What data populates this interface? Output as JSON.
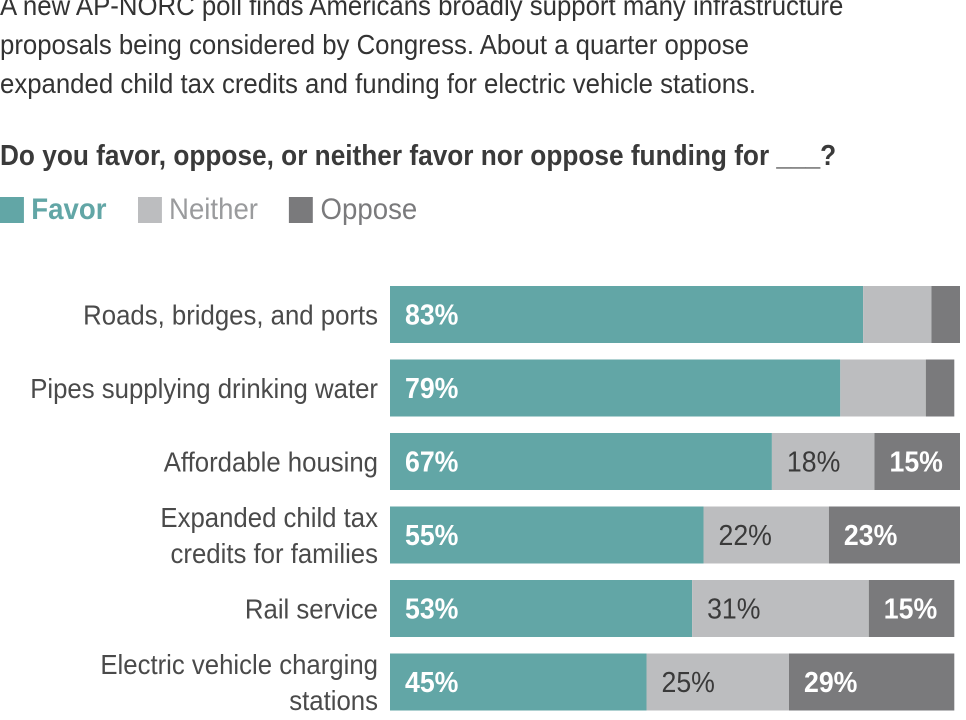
{
  "intro_lines": [
    "A new AP-NORC poll finds Americans broadly support many infrastructure",
    "proposals being considered by Congress. About a quarter oppose",
    "expanded child tax credits and funding for electric vehicle stations."
  ],
  "question": "Do you favor, oppose, or neither favor nor oppose funding for ___?",
  "legend": [
    {
      "label": "Favor",
      "color": "#62a6a6",
      "text_color": "#62a6a6",
      "bold": true
    },
    {
      "label": "Neither",
      "color": "#bcbdbf",
      "text_color": "#9a9b9d",
      "bold": false
    },
    {
      "label": "Oppose",
      "color": "#7a7a7c",
      "text_color": "#7a7a7c",
      "bold": false
    }
  ],
  "chart_data": {
    "type": "bar",
    "orientation": "horizontal",
    "stacked": true,
    "categories": [
      [
        "Roads, bridges, and ports"
      ],
      [
        "Pipes supplying drinking water"
      ],
      [
        "Affordable housing"
      ],
      [
        "Expanded child tax",
        "credits for families"
      ],
      [
        "Rail service"
      ],
      [
        "Electric vehicle charging",
        "stations"
      ]
    ],
    "series": [
      {
        "name": "Favor",
        "color": "#62a6a6",
        "values": [
          83,
          79,
          67,
          55,
          53,
          45
        ],
        "labels": [
          "83%",
          "79%",
          "67%",
          "55%",
          "53%",
          "45%"
        ]
      },
      {
        "name": "Neither",
        "color": "#bcbdbf",
        "values": [
          12,
          15,
          18,
          22,
          31,
          25
        ],
        "labels": [
          "",
          "",
          "18%",
          "22%",
          "31%",
          "25%"
        ]
      },
      {
        "name": "Oppose",
        "color": "#7a7a7c",
        "values": [
          5,
          5,
          15,
          23,
          15,
          29
        ],
        "labels": [
          "",
          "",
          "15%",
          "23%",
          "15%",
          "29%"
        ]
      }
    ],
    "xlim": [
      0,
      100
    ],
    "grid": false,
    "legend_position": "top-left"
  }
}
